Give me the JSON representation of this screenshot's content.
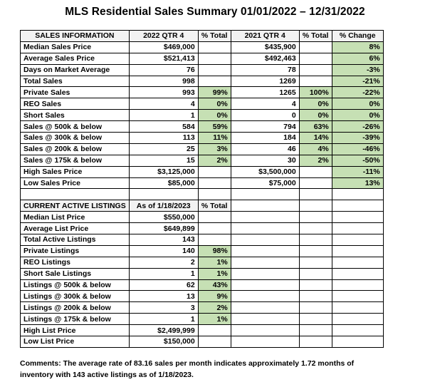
{
  "title": "MLS Residential Sales Summary 01/01/2022 – 12/31/2022",
  "colors": {
    "highlight": "#c6e0b4",
    "header_bg": "#f2f2f2"
  },
  "sales": {
    "headers": [
      "SALES INFORMATION",
      "2022 QTR 4",
      "% Total",
      "2021 QTR 4",
      "% Total",
      "% Change"
    ],
    "rows": [
      [
        "Median Sales Price",
        "$469,000",
        "",
        "$435,900",
        "",
        "8%"
      ],
      [
        "Average Sales Price",
        "$521,413",
        "",
        "$492,463",
        "",
        "6%"
      ],
      [
        "Days on Market Average",
        "76",
        "",
        "78",
        "",
        "-3%"
      ],
      [
        "Total Sales",
        "998",
        "",
        "1269",
        "",
        "-21%"
      ],
      [
        "Private Sales",
        "993",
        "99%",
        "1265",
        "100%",
        "-22%"
      ],
      [
        "REO Sales",
        "4",
        "0%",
        "4",
        "0%",
        "0%"
      ],
      [
        "Short Sales",
        "1",
        "0%",
        "0",
        "0%",
        "0%"
      ],
      [
        "Sales @ 500k & below",
        "584",
        "59%",
        "794",
        "63%",
        "-26%"
      ],
      [
        "Sales @ 300k & below",
        "113",
        "11%",
        "184",
        "14%",
        "-39%"
      ],
      [
        "Sales @ 200k & below",
        "25",
        "3%",
        "46",
        "4%",
        "-46%"
      ],
      [
        "Sales @ 175k & below",
        "15",
        "2%",
        "30",
        "2%",
        "-50%"
      ],
      [
        "High Sales Price",
        "$3,125,000",
        "",
        "$3,500,000",
        "",
        "-11%"
      ],
      [
        "Low Sales Price",
        "$85,000",
        "",
        "$75,000",
        "",
        "13%"
      ]
    ]
  },
  "listings": {
    "headers": [
      "CURRENT ACTIVE LISTINGS",
      "As of 1/18/2023",
      "% Total"
    ],
    "rows": [
      [
        "Median List Price",
        "$550,000",
        ""
      ],
      [
        "Average List Price",
        "$649,899",
        ""
      ],
      [
        "Total Active Listings",
        "143",
        ""
      ],
      [
        "Private Listings",
        "140",
        "98%"
      ],
      [
        "REO Listings",
        "2",
        "1%"
      ],
      [
        "Short Sale Listings",
        "1",
        "1%"
      ],
      [
        "Listings @ 500k & below",
        "62",
        "43%"
      ],
      [
        "Listings @ 300k & below",
        "13",
        "9%"
      ],
      [
        "Listings @ 200k & below",
        "3",
        "2%"
      ],
      [
        "Listings @ 175k & below",
        "1",
        "1%"
      ],
      [
        "High List Price",
        "$2,499,999",
        ""
      ],
      [
        "Low List Price",
        "$150,000",
        ""
      ]
    ]
  },
  "comments": "Comments: The average rate of 83.16 sales per month indicates approximately 1.72 months of inventory with 143 active listings as of 1/18/2023."
}
